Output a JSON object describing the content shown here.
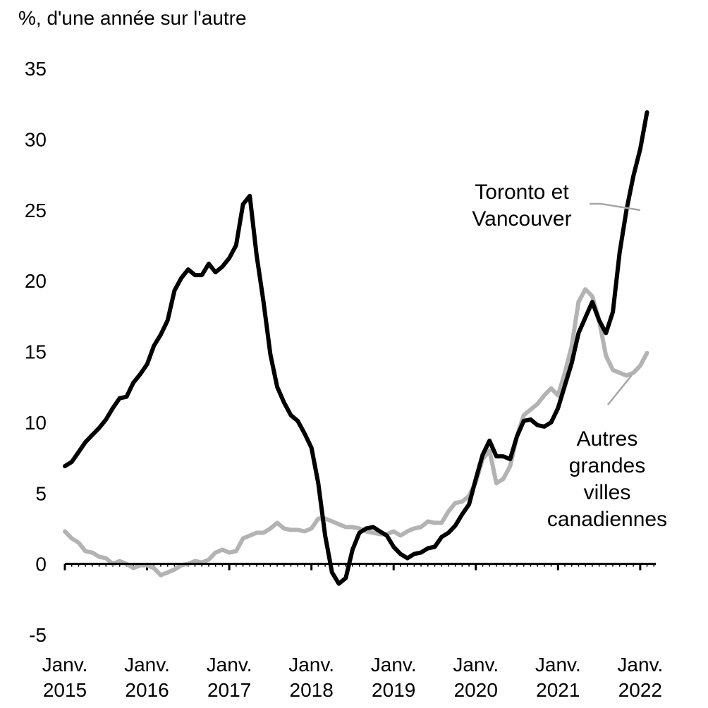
{
  "chart_data": {
    "type": "line",
    "ylabel": "%, d'une année sur l'autre",
    "ylim": [
      -5,
      35
    ],
    "yticks": [
      -5,
      0,
      5,
      10,
      15,
      20,
      25,
      30,
      35
    ],
    "xlim": [
      2015.0,
      2022.25
    ],
    "xticks": [
      {
        "value": 2015,
        "line1": "Janv.",
        "line2": "2015"
      },
      {
        "value": 2016,
        "line1": "Janv.",
        "line2": "2016"
      },
      {
        "value": 2017,
        "line1": "Janv.",
        "line2": "2017"
      },
      {
        "value": 2018,
        "line1": "Janv.",
        "line2": "2018"
      },
      {
        "value": 2019,
        "line1": "Janv.",
        "line2": "2019"
      },
      {
        "value": 2020,
        "line1": "Janv.",
        "line2": "2020"
      },
      {
        "value": 2021,
        "line1": "Janv.",
        "line2": "2021"
      },
      {
        "value": 2022,
        "line1": "Janv.",
        "line2": "2022"
      }
    ],
    "grid": false,
    "series": [
      {
        "name": "Toronto et Vancouver",
        "color": "#000000",
        "values": [
          [
            2015.0,
            6.9
          ],
          [
            2015.083,
            7.2
          ],
          [
            2015.167,
            7.9
          ],
          [
            2015.25,
            8.6
          ],
          [
            2015.333,
            9.1
          ],
          [
            2015.417,
            9.6
          ],
          [
            2015.5,
            10.2
          ],
          [
            2015.583,
            11.0
          ],
          [
            2015.667,
            11.7
          ],
          [
            2015.75,
            11.8
          ],
          [
            2015.833,
            12.8
          ],
          [
            2015.917,
            13.4
          ],
          [
            2016.0,
            14.1
          ],
          [
            2016.083,
            15.4
          ],
          [
            2016.167,
            16.2
          ],
          [
            2016.25,
            17.2
          ],
          [
            2016.333,
            19.3
          ],
          [
            2016.417,
            20.2
          ],
          [
            2016.5,
            20.8
          ],
          [
            2016.583,
            20.4
          ],
          [
            2016.667,
            20.4
          ],
          [
            2016.75,
            21.2
          ],
          [
            2016.833,
            20.6
          ],
          [
            2016.917,
            21.0
          ],
          [
            2017.0,
            21.6
          ],
          [
            2017.083,
            22.5
          ],
          [
            2017.167,
            25.4
          ],
          [
            2017.25,
            26.0
          ],
          [
            2017.333,
            21.8
          ],
          [
            2017.417,
            18.5
          ],
          [
            2017.5,
            14.8
          ],
          [
            2017.583,
            12.5
          ],
          [
            2017.667,
            11.4
          ],
          [
            2017.75,
            10.5
          ],
          [
            2017.833,
            10.1
          ],
          [
            2017.917,
            9.2
          ],
          [
            2018.0,
            8.2
          ],
          [
            2018.083,
            5.7
          ],
          [
            2018.167,
            2.0
          ],
          [
            2018.25,
            -0.6
          ],
          [
            2018.333,
            -1.4
          ],
          [
            2018.417,
            -1.0
          ],
          [
            2018.5,
            1.0
          ],
          [
            2018.583,
            2.2
          ],
          [
            2018.667,
            2.5
          ],
          [
            2018.75,
            2.6
          ],
          [
            2018.833,
            2.3
          ],
          [
            2018.917,
            2.0
          ],
          [
            2019.0,
            1.2
          ],
          [
            2019.083,
            0.7
          ],
          [
            2019.167,
            0.4
          ],
          [
            2019.25,
            0.7
          ],
          [
            2019.333,
            0.8
          ],
          [
            2019.417,
            1.1
          ],
          [
            2019.5,
            1.2
          ],
          [
            2019.583,
            1.9
          ],
          [
            2019.667,
            2.2
          ],
          [
            2019.75,
            2.7
          ],
          [
            2019.833,
            3.5
          ],
          [
            2019.917,
            4.2
          ],
          [
            2020.0,
            6.0
          ],
          [
            2020.083,
            7.7
          ],
          [
            2020.167,
            8.7
          ],
          [
            2020.25,
            7.6
          ],
          [
            2020.333,
            7.6
          ],
          [
            2020.417,
            7.4
          ],
          [
            2020.5,
            9.0
          ],
          [
            2020.583,
            10.1
          ],
          [
            2020.667,
            10.2
          ],
          [
            2020.75,
            9.8
          ],
          [
            2020.833,
            9.7
          ],
          [
            2020.917,
            10.0
          ],
          [
            2021.0,
            11.0
          ],
          [
            2021.083,
            12.6
          ],
          [
            2021.167,
            14.2
          ],
          [
            2021.25,
            16.3
          ],
          [
            2021.333,
            17.4
          ],
          [
            2021.417,
            18.5
          ],
          [
            2021.5,
            17.2
          ],
          [
            2021.583,
            16.3
          ],
          [
            2021.667,
            17.8
          ],
          [
            2021.75,
            22.0
          ],
          [
            2021.833,
            25.0
          ],
          [
            2021.917,
            27.4
          ],
          [
            2022.0,
            29.3
          ],
          [
            2022.083,
            31.9
          ]
        ]
      },
      {
        "name": "Autres grandes villes canadiennes",
        "color": "#b3b3b3",
        "values": [
          [
            2015.0,
            2.3
          ],
          [
            2015.083,
            1.8
          ],
          [
            2015.167,
            1.5
          ],
          [
            2015.25,
            0.9
          ],
          [
            2015.333,
            0.8
          ],
          [
            2015.417,
            0.5
          ],
          [
            2015.5,
            0.4
          ],
          [
            2015.583,
            0.0
          ],
          [
            2015.667,
            0.2
          ],
          [
            2015.75,
            0.0
          ],
          [
            2015.833,
            -0.3
          ],
          [
            2015.917,
            -0.1
          ],
          [
            2016.0,
            -0.1
          ],
          [
            2016.083,
            -0.3
          ],
          [
            2016.167,
            -0.8
          ],
          [
            2016.25,
            -0.6
          ],
          [
            2016.333,
            -0.4
          ],
          [
            2016.417,
            -0.1
          ],
          [
            2016.5,
            0.0
          ],
          [
            2016.583,
            0.2
          ],
          [
            2016.667,
            0.1
          ],
          [
            2016.75,
            0.3
          ],
          [
            2016.833,
            0.8
          ],
          [
            2016.917,
            1.0
          ],
          [
            2017.0,
            0.8
          ],
          [
            2017.083,
            0.9
          ],
          [
            2017.167,
            1.8
          ],
          [
            2017.25,
            2.0
          ],
          [
            2017.333,
            2.2
          ],
          [
            2017.417,
            2.2
          ],
          [
            2017.5,
            2.5
          ],
          [
            2017.583,
            2.9
          ],
          [
            2017.667,
            2.5
          ],
          [
            2017.75,
            2.4
          ],
          [
            2017.833,
            2.4
          ],
          [
            2017.917,
            2.3
          ],
          [
            2018.0,
            2.5
          ],
          [
            2018.083,
            3.2
          ],
          [
            2018.167,
            3.2
          ],
          [
            2018.25,
            3.0
          ],
          [
            2018.333,
            2.8
          ],
          [
            2018.417,
            2.6
          ],
          [
            2018.5,
            2.6
          ],
          [
            2018.583,
            2.5
          ],
          [
            2018.667,
            2.3
          ],
          [
            2018.75,
            2.2
          ],
          [
            2018.833,
            2.1
          ],
          [
            2018.917,
            2.1
          ],
          [
            2019.0,
            2.3
          ],
          [
            2019.083,
            2.0
          ],
          [
            2019.167,
            2.3
          ],
          [
            2019.25,
            2.5
          ],
          [
            2019.333,
            2.6
          ],
          [
            2019.417,
            3.0
          ],
          [
            2019.5,
            2.9
          ],
          [
            2019.583,
            2.9
          ],
          [
            2019.667,
            3.7
          ],
          [
            2019.75,
            4.3
          ],
          [
            2019.833,
            4.4
          ],
          [
            2019.917,
            4.8
          ],
          [
            2020.0,
            5.8
          ],
          [
            2020.083,
            7.4
          ],
          [
            2020.167,
            8.0
          ],
          [
            2020.25,
            5.7
          ],
          [
            2020.333,
            6.0
          ],
          [
            2020.417,
            6.9
          ],
          [
            2020.5,
            9.0
          ],
          [
            2020.583,
            10.5
          ],
          [
            2020.667,
            10.9
          ],
          [
            2020.75,
            11.3
          ],
          [
            2020.833,
            11.9
          ],
          [
            2020.917,
            12.4
          ],
          [
            2021.0,
            11.9
          ],
          [
            2021.083,
            13.5
          ],
          [
            2021.167,
            15.4
          ],
          [
            2021.25,
            18.5
          ],
          [
            2021.333,
            19.4
          ],
          [
            2021.417,
            18.9
          ],
          [
            2021.5,
            17.2
          ],
          [
            2021.583,
            14.7
          ],
          [
            2021.667,
            13.7
          ],
          [
            2021.75,
            13.5
          ],
          [
            2021.833,
            13.3
          ],
          [
            2021.917,
            13.5
          ],
          [
            2022.0,
            14.0
          ],
          [
            2022.083,
            14.9
          ]
        ]
      }
    ],
    "annotations": [
      {
        "series": 0,
        "lines": [
          "Toronto et",
          "Vancouver"
        ]
      },
      {
        "series": 1,
        "lines": [
          "Autres",
          "grandes",
          "villes",
          "canadiennes"
        ]
      }
    ]
  }
}
